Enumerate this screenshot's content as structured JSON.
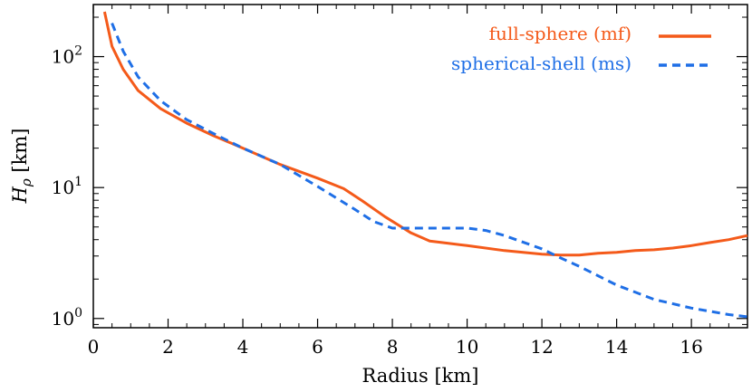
{
  "chart_data": {
    "type": "line",
    "title": "",
    "xlabel": "Radius [km]",
    "ylabel_main": "H",
    "ylabel_sub": "ρ",
    "ylabel_unit": " [km]",
    "xlim": [
      0,
      17.5
    ],
    "ylim": [
      0.85,
      250
    ],
    "yscale": "log",
    "grid": false,
    "legend_position": "top-right",
    "x_ticks": [
      0,
      2,
      4,
      6,
      8,
      10,
      12,
      14,
      16
    ],
    "x_tick_labels": [
      "0",
      "2",
      "4",
      "6",
      "8",
      "10",
      "12",
      "14",
      "16"
    ],
    "y_major_ticks": [
      1,
      10,
      100
    ],
    "y_tick_labels": [
      {
        "base": "10",
        "exp": "0"
      },
      {
        "base": "10",
        "exp": "1"
      },
      {
        "base": "10",
        "exp": "2"
      }
    ],
    "series": [
      {
        "name": "full-sphere (mf)",
        "color": "#f45a1a",
        "dash": "solid",
        "x": [
          0.3,
          0.5,
          0.8,
          1.2,
          1.8,
          2.5,
          3.2,
          4.0,
          5.0,
          6.0,
          6.7,
          7.2,
          7.8,
          8.5,
          9.0,
          9.5,
          10.0,
          11.0,
          12.0,
          12.5,
          13.0,
          13.5,
          14.0,
          14.5,
          15.0,
          15.5,
          16.0,
          16.5,
          17.0,
          17.5
        ],
        "y": [
          220,
          120,
          80,
          55,
          40,
          31,
          25,
          20,
          15,
          11.8,
          9.8,
          7.9,
          6.0,
          4.5,
          3.9,
          3.75,
          3.6,
          3.3,
          3.1,
          3.05,
          3.05,
          3.15,
          3.2,
          3.3,
          3.35,
          3.45,
          3.6,
          3.8,
          4.0,
          4.3
        ]
      },
      {
        "name": "spherical-shell (ms)",
        "color": "#1f6fe6",
        "dash": "dashed",
        "x": [
          0.5,
          0.8,
          1.2,
          1.8,
          2.5,
          3.2,
          4.0,
          5.0,
          6.0,
          7.0,
          7.5,
          8.0,
          9.0,
          10.0,
          10.5,
          11.0,
          12.0,
          12.5,
          13.0,
          14.0,
          15.0,
          16.0,
          17.0,
          17.5
        ],
        "y": [
          180,
          110,
          70,
          46,
          33,
          26,
          20,
          15,
          10.2,
          6.8,
          5.5,
          4.9,
          4.9,
          4.9,
          4.7,
          4.3,
          3.4,
          2.9,
          2.5,
          1.8,
          1.4,
          1.2,
          1.07,
          1.03
        ]
      }
    ]
  }
}
